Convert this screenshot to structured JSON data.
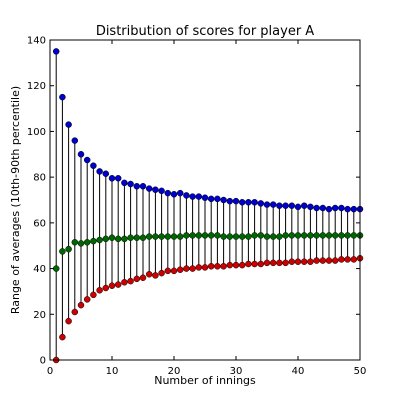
{
  "chart_data": {
    "type": "scatter",
    "title": "Distribution of scores for player A",
    "xlabel": "Number of innings",
    "ylabel": "Range of averages (10th-90th percentile)",
    "xlim": [
      0,
      50
    ],
    "ylim": [
      0,
      140
    ],
    "xticks": [
      "0",
      "10",
      "20",
      "30",
      "40",
      "50"
    ],
    "yticks": [
      "0",
      "20",
      "40",
      "60",
      "80",
      "100",
      "120",
      "140"
    ],
    "grid": false,
    "legend": "none",
    "x": [
      1,
      2,
      3,
      4,
      5,
      6,
      7,
      8,
      9,
      10,
      11,
      12,
      13,
      14,
      15,
      16,
      17,
      18,
      19,
      20,
      21,
      22,
      23,
      24,
      25,
      26,
      27,
      28,
      29,
      30,
      31,
      32,
      33,
      34,
      35,
      36,
      37,
      38,
      39,
      40,
      41,
      42,
      43,
      44,
      45,
      46,
      47,
      48,
      49,
      50
    ],
    "series": [
      {
        "color": "#0000cc",
        "values": [
          135,
          115,
          103,
          96,
          90,
          87.5,
          85,
          82.5,
          81.5,
          79.5,
          79.5,
          77.5,
          77,
          76,
          76,
          75,
          74.5,
          74,
          73,
          72.5,
          73,
          72,
          71.5,
          71.5,
          71,
          70.5,
          70.5,
          70,
          69.5,
          69.5,
          69,
          69,
          69,
          68.5,
          68,
          68,
          67.5,
          67.5,
          67.5,
          67,
          67.5,
          67,
          66.5,
          66.5,
          66,
          66.5,
          66.5,
          66,
          66,
          66
        ]
      },
      {
        "color": "#006600",
        "values": [
          40,
          47.5,
          48.5,
          51.5,
          51,
          51.5,
          52,
          52.5,
          53,
          53.5,
          53,
          53,
          53.5,
          53.5,
          53.5,
          54,
          54,
          54,
          54,
          54,
          54,
          54.5,
          54.5,
          54.5,
          54.5,
          54.5,
          54.5,
          54,
          54,
          54,
          54,
          54,
          54.5,
          54.5,
          54,
          54,
          54,
          54.5,
          54.5,
          54.5,
          54.5,
          54.5,
          54.5,
          54.5,
          54.5,
          54.5,
          54.5,
          54.5,
          54.5,
          54.5
        ]
      },
      {
        "color": "#cc0000",
        "values": [
          0,
          10,
          17,
          21,
          24,
          26.5,
          28.5,
          30.5,
          31.5,
          32.5,
          33,
          34,
          34.5,
          35.5,
          36,
          37.5,
          37,
          38,
          39,
          39,
          39.5,
          40,
          40,
          40.5,
          40.5,
          41,
          41,
          41,
          41.5,
          41.5,
          41.5,
          42,
          42,
          42,
          42.5,
          42.5,
          42.5,
          42.5,
          43,
          43,
          43,
          43,
          43.5,
          43.5,
          43.5,
          43.5,
          44,
          44,
          44,
          44.5
        ]
      }
    ]
  }
}
